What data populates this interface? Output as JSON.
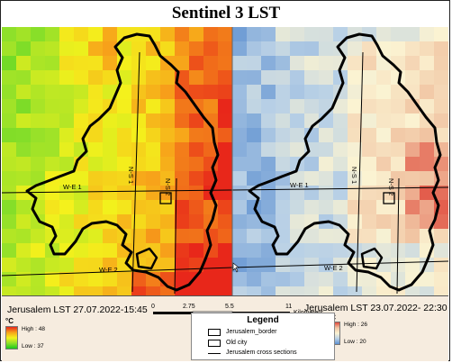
{
  "title": "Sentinel 3 LST",
  "left_panel": {
    "label": "Jerusalem LST 27.07.2022-15:45",
    "unit": "°C",
    "high_label": "High : 48",
    "low_label": "Low : 37",
    "high_value": 48,
    "low_value": 37,
    "ramp_colors": [
      "#e8271a",
      "#f7a11a",
      "#f4f11c",
      "#8fe02a",
      "#19c91c"
    ]
  },
  "right_panel": {
    "label": "Jerusalem LST 23.07.2022- 22:30",
    "unit": "°C",
    "high_label": "High : 26",
    "low_label": "Low : 20",
    "high_value": 26,
    "low_value": 20,
    "ramp_colors": [
      "#e04a3c",
      "#f1c6a4",
      "#fbf3d2",
      "#b8d0e6",
      "#5c8fd0"
    ]
  },
  "scale": {
    "ticks": [
      "0",
      "2.75",
      "5.5",
      "11"
    ],
    "unit": "Kilometers"
  },
  "legend": {
    "title": "Legend",
    "items": [
      "Jerusalem_border",
      "Old city",
      "Jerusalem cross sections"
    ]
  },
  "cross_sections": {
    "we1": "W-E 1",
    "we2": "W-E 2",
    "ns1": "N-S 1",
    "ns2": "N-S 2"
  }
}
